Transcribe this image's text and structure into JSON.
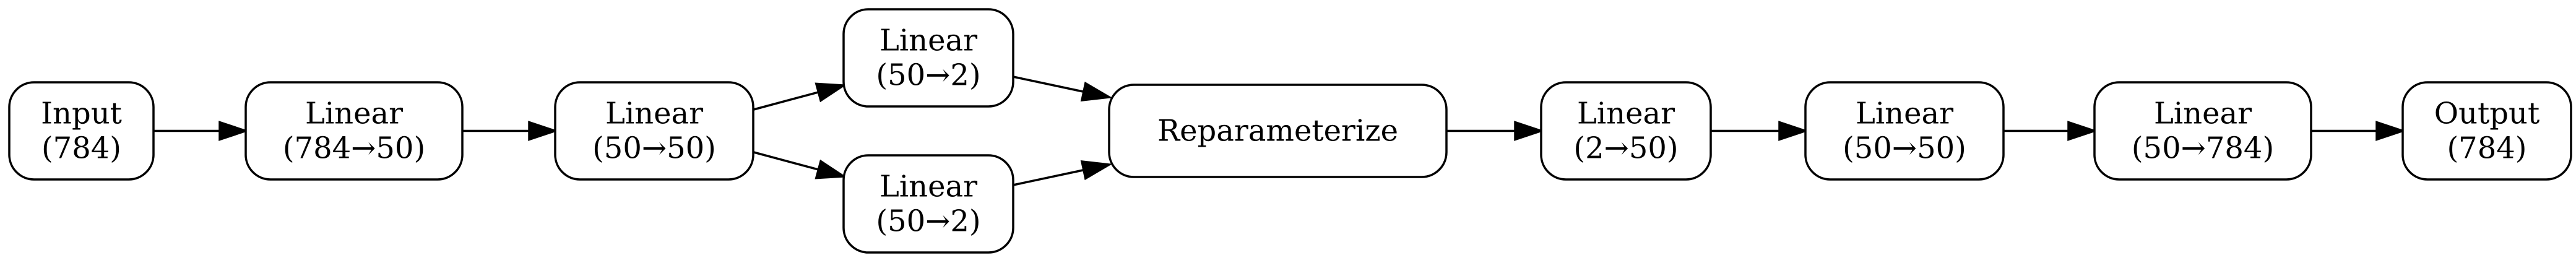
{
  "diagram": {
    "nodes": [
      {
        "id": "input",
        "lines": [
          "Input",
          "(784)"
        ]
      },
      {
        "id": "enc1",
        "lines": [
          "Linear",
          "(784→50)"
        ]
      },
      {
        "id": "enc2",
        "lines": [
          "Linear",
          "(50→50)"
        ]
      },
      {
        "id": "mu",
        "lines": [
          "Linear",
          "(50→2)"
        ]
      },
      {
        "id": "logvar",
        "lines": [
          "Linear",
          "(50→2)"
        ]
      },
      {
        "id": "reparam",
        "lines": [
          "Reparameterize"
        ]
      },
      {
        "id": "dec1",
        "lines": [
          "Linear",
          "(2→50)"
        ]
      },
      {
        "id": "dec2",
        "lines": [
          "Linear",
          "(50→50)"
        ]
      },
      {
        "id": "dec3",
        "lines": [
          "Linear",
          "(50→784)"
        ]
      },
      {
        "id": "output",
        "lines": [
          "Output",
          "(784)"
        ]
      }
    ],
    "edges": [
      {
        "from": "input",
        "to": "enc1"
      },
      {
        "from": "enc1",
        "to": "enc2"
      },
      {
        "from": "enc2",
        "to": "mu"
      },
      {
        "from": "enc2",
        "to": "logvar"
      },
      {
        "from": "mu",
        "to": "reparam"
      },
      {
        "from": "logvar",
        "to": "reparam"
      },
      {
        "from": "reparam",
        "to": "dec1"
      },
      {
        "from": "dec1",
        "to": "dec2"
      },
      {
        "from": "dec2",
        "to": "dec3"
      },
      {
        "from": "dec3",
        "to": "output"
      }
    ]
  }
}
